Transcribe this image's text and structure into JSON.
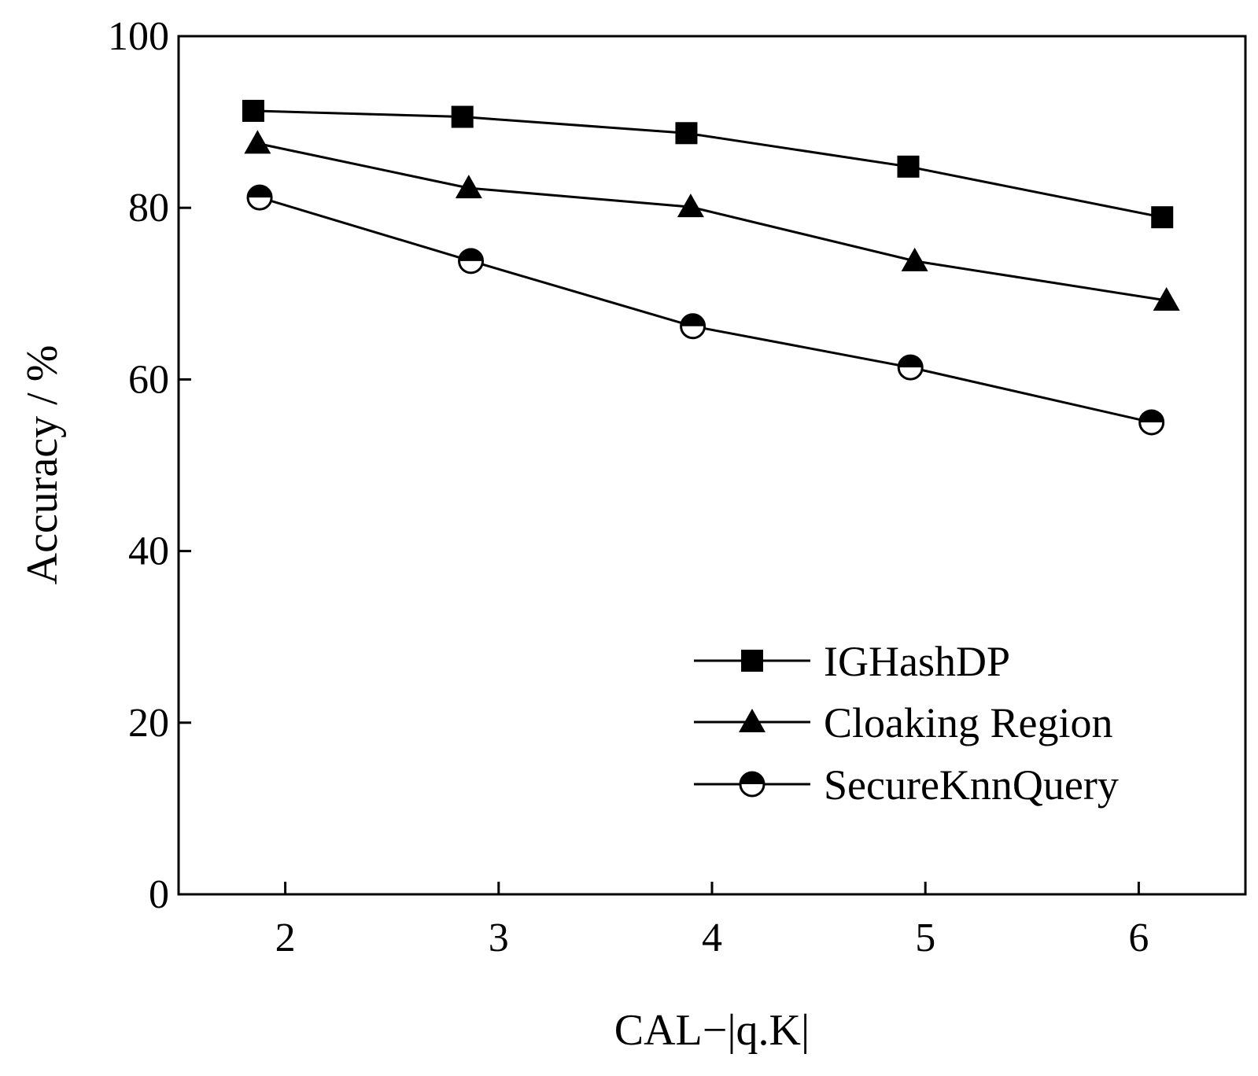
{
  "chart_data": {
    "type": "line",
    "title": "",
    "xlabel": "CAL−|q.K|",
    "ylabel": "Accuracy / %",
    "xlim": [
      1.5,
      6.5
    ],
    "ylim": [
      0,
      100
    ],
    "xticks": [
      2,
      3,
      4,
      5,
      6
    ],
    "yticks": [
      0,
      20,
      40,
      60,
      80,
      100
    ],
    "grid": false,
    "legend_position": "bottom-right",
    "series": [
      {
        "name": "IGHashDP",
        "marker": "filled-square",
        "color": "#000000",
        "x": [
          1.85,
          2.83,
          3.88,
          4.92,
          6.11
        ],
        "y": [
          91.3,
          90.6,
          88.7,
          84.8,
          78.9
        ]
      },
      {
        "name": "Cloaking Region",
        "marker": "filled-triangle",
        "color": "#000000",
        "x": [
          1.87,
          2.86,
          3.9,
          4.95,
          6.13
        ],
        "y": [
          87.5,
          82.3,
          80.1,
          73.8,
          69.2
        ]
      },
      {
        "name": "SecureKnnQuery",
        "marker": "half-filled-circle",
        "color": "#000000",
        "x": [
          1.88,
          2.87,
          3.91,
          4.93,
          6.06
        ],
        "y": [
          81.2,
          73.8,
          66.2,
          61.4,
          55.0
        ]
      }
    ]
  }
}
